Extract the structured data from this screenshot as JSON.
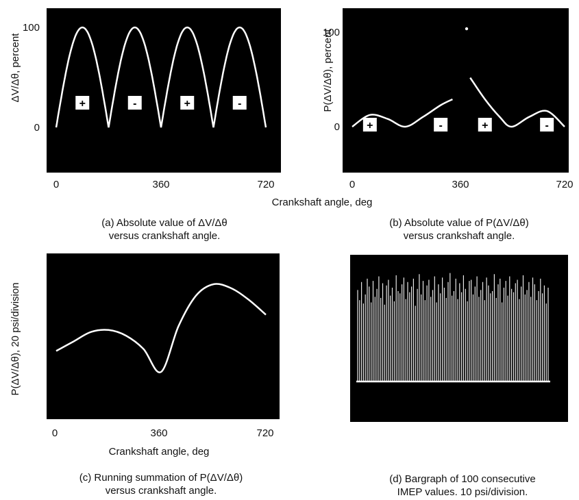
{
  "panels": {
    "a": {
      "y_ticks": [
        "100",
        "0"
      ],
      "x_ticks": [
        "0",
        "360",
        "720"
      ],
      "ylabel": "ΔV/Δθ, percent",
      "caption": [
        "(a) Absolute value of ΔV/Δθ",
        "versus crankshaft angle."
      ],
      "signs": [
        "+",
        "-",
        "+",
        "-"
      ]
    },
    "b": {
      "y_ticks": [
        "100",
        "0"
      ],
      "x_ticks": [
        "0",
        "360",
        "720"
      ],
      "ylabel": "P(ΔV/Δθ), percent",
      "caption": [
        "(b) Absolute value of P(ΔV/Δθ)",
        "versus crankshaft angle."
      ],
      "signs": [
        "+",
        "-",
        "+",
        "-"
      ]
    },
    "c": {
      "x_ticks": [
        "0",
        "360",
        "720"
      ],
      "xlabel": "Crankshaft angle, deg",
      "ylabel": "P(ΔV/Δθ), 20 psi/division",
      "caption": [
        "(c) Running summation of P(ΔV/Δθ)",
        "versus crankshaft angle."
      ]
    },
    "d": {
      "caption": [
        "(d) Bargraph of 100 consecutive",
        "IMEP values.  10 psi/division."
      ]
    }
  },
  "shared_xlabel": "Crankshaft angle, deg",
  "colors": {
    "plot_bg": "#000000",
    "trace": "#ffffff",
    "badge_bg": "#ffffff"
  },
  "chart_data": [
    {
      "type": "line",
      "id": "a",
      "xlabel": "Crankshaft angle, deg",
      "ylabel": "ΔV/Δθ, percent",
      "xlim": [
        0,
        720
      ],
      "series": [
        {
          "x": [
            0,
            45,
            90,
            135,
            180,
            225,
            270,
            315,
            360,
            405,
            450,
            495,
            540,
            585,
            630,
            675,
            720
          ],
          "y": [
            0,
            72,
            100,
            72,
            0,
            72,
            100,
            72,
            0,
            72,
            100,
            72,
            0,
            72,
            100,
            72,
            0
          ]
        }
      ],
      "annotations": [
        "+",
        "-",
        "+",
        "-"
      ]
    },
    {
      "type": "line",
      "id": "b",
      "xlabel": "Crankshaft angle, deg",
      "ylabel": "P(ΔV/Δθ), percent",
      "xlim": [
        0,
        720
      ],
      "series": [
        {
          "x": [
            0,
            60,
            120,
            180,
            240,
            300,
            340,
            360,
            400,
            450,
            500,
            540,
            600,
            660,
            720
          ],
          "y": [
            0,
            12,
            8,
            0,
            10,
            22,
            28,
            100,
            50,
            28,
            10,
            0,
            10,
            16,
            0
          ]
        }
      ],
      "annotations": [
        "+",
        "-",
        "+",
        "-"
      ]
    },
    {
      "type": "line",
      "id": "c",
      "xlabel": "Crankshaft angle, deg",
      "ylabel": "P(ΔV/Δθ), 20 psi/division",
      "xlim": [
        0,
        720
      ],
      "series": [
        {
          "x": [
            0,
            60,
            120,
            180,
            240,
            300,
            360,
            420,
            480,
            540,
            600,
            660,
            720
          ],
          "y": [
            1.1,
            1.6,
            2.1,
            2.2,
            1.9,
            1.2,
            0.0,
            2.4,
            4.0,
            4.6,
            4.4,
            3.8,
            3.0
          ]
        }
      ]
    },
    {
      "type": "bar",
      "id": "d",
      "ylabel": "IMEP, 10 psi/division",
      "categories_count": 100,
      "values": [
        8.1,
        7.2,
        8.8,
        6.9,
        7.7,
        9.1,
        8.4,
        7.0,
        8.9,
        7.5,
        8.2,
        9.3,
        7.4,
        8.7,
        6.8,
        8.5,
        9.0,
        7.6,
        8.3,
        7.1,
        9.4,
        8.0,
        7.8,
        8.6,
        9.2,
        7.3,
        8.8,
        7.9,
        8.4,
        9.1,
        6.7,
        8.2,
        9.5,
        7.7,
        8.9,
        7.2,
        8.5,
        9.0,
        7.5,
        8.1,
        9.3,
        7.0,
        8.6,
        7.8,
        9.2,
        8.3,
        7.4,
        8.8,
        9.6,
        7.6,
        8.0,
        9.1,
        7.3,
        8.7,
        7.9,
        9.4,
        8.2,
        7.1,
        8.9,
        9.0,
        7.7,
        8.4,
        9.3,
        7.5,
        8.1,
        8.8,
        7.2,
        9.2,
        8.5,
        7.8,
        8.0,
        9.5,
        7.4,
        8.6,
        9.1,
        7.0,
        8.3,
        8.9,
        7.6,
        9.3,
        8.2,
        7.9,
        8.7,
        9.0,
        7.3,
        8.4,
        9.4,
        7.7,
        8.1,
        8.8,
        7.5,
        9.2,
        8.6,
        7.2,
        8.0,
        9.1,
        7.8,
        8.5,
        6.9,
        8.3
      ]
    }
  ]
}
